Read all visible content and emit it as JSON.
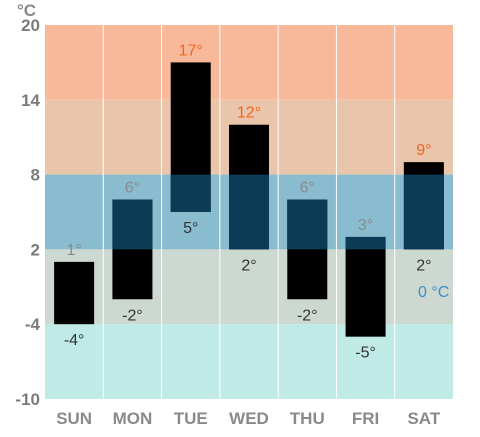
{
  "unit": "°C",
  "zero_label": "0 °C",
  "chart_data": {
    "type": "bar",
    "subtype": "floating-range",
    "categories": [
      "SUN",
      "MON",
      "TUE",
      "WED",
      "THU",
      "FRI",
      "SAT"
    ],
    "series": [
      {
        "values_high": [
          1,
          6,
          17,
          12,
          6,
          3,
          9
        ]
      },
      {
        "values_low": [
          -4,
          -2,
          5,
          2,
          -2,
          -5,
          2
        ]
      }
    ],
    "high_labels": [
      "1°",
      "6°",
      "17°",
      "12°",
      "6°",
      "3°",
      "9°"
    ],
    "low_labels": [
      "-4°",
      "-2°",
      "5°",
      "2°",
      "-2°",
      "-5°",
      "2°"
    ],
    "ylim": [
      -10,
      20
    ],
    "yticks": [
      20,
      14,
      8,
      2,
      -4,
      -10
    ],
    "ytick_labels": [
      "20",
      "14",
      "8",
      "2",
      "-4",
      "-10"
    ],
    "ylabel": "°C",
    "bands": [
      {
        "from": 14,
        "to": 20,
        "color": "#f7b99a"
      },
      {
        "from": 8,
        "to": 14,
        "color": "#e8c5ab"
      },
      {
        "from": 2,
        "to": 8,
        "color": "#8abccf"
      },
      {
        "from": -4,
        "to": 2,
        "color": "#ccd8d0"
      },
      {
        "from": -10,
        "to": -4,
        "color": "#bfeae6"
      }
    ],
    "colors": {
      "bar": "#000000",
      "bar_overlap_in_blue_band": "#0c3b56",
      "high_label_warm": "#f26522",
      "high_label_cool": "#8a8a8a",
      "low_label_in_blue_band": "#1c6b94",
      "low_label": "#333333",
      "gridline": "#ffffff"
    },
    "grid": true
  }
}
